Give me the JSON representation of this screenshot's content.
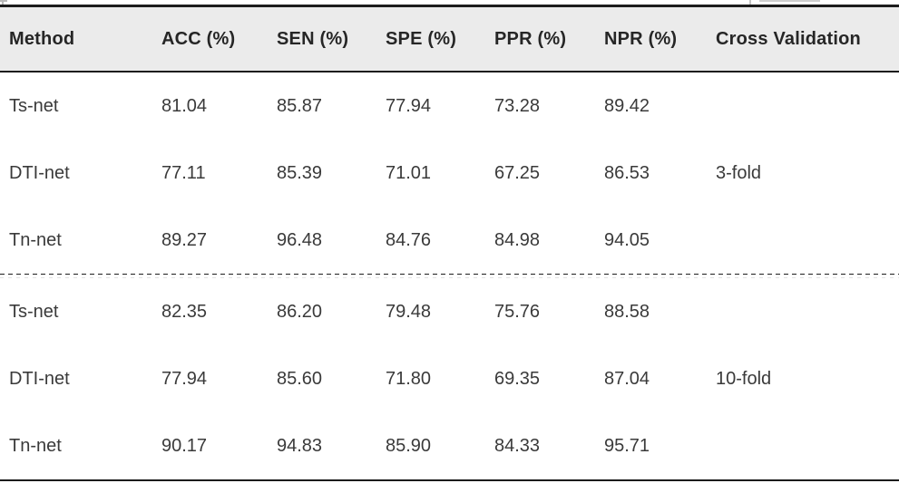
{
  "colors": {
    "header_background": "#ebebeb",
    "rule_color": "#1c1c1c",
    "header_text": "#262626",
    "body_text": "#3a3a3a"
  },
  "table": {
    "columns": [
      "Method",
      "ACC (%)",
      "SEN (%)",
      "SPE (%)",
      "PPR (%)",
      "NPR (%)",
      "Cross Validation"
    ],
    "sections": [
      {
        "cross_validation": "3-fold",
        "rows": [
          {
            "method": "Ts-net",
            "values": [
              "81.04",
              "85.87",
              "77.94",
              "73.28",
              "89.42"
            ]
          },
          {
            "method": "DTI-net",
            "values": [
              "77.11",
              "85.39",
              "71.01",
              "67.25",
              "86.53"
            ]
          },
          {
            "method": "Tn-net",
            "values": [
              "89.27",
              "96.48",
              "84.76",
              "84.98",
              "94.05"
            ]
          }
        ]
      },
      {
        "cross_validation": "10-fold",
        "rows": [
          {
            "method": "Ts-net",
            "values": [
              "82.35",
              "86.20",
              "79.48",
              "75.76",
              "88.58"
            ]
          },
          {
            "method": "DTI-net",
            "values": [
              "77.94",
              "85.60",
              "71.80",
              "69.35",
              "87.04"
            ]
          },
          {
            "method": "Tn-net",
            "values": [
              "90.17",
              "94.83",
              "85.90",
              "84.33",
              "95.71"
            ]
          }
        ]
      }
    ]
  },
  "chart_data": {
    "type": "table",
    "title": "",
    "columns": [
      "Method",
      "ACC (%)",
      "SEN (%)",
      "SPE (%)",
      "PPR (%)",
      "NPR (%)",
      "Cross Validation"
    ],
    "rows": [
      [
        "Ts-net",
        81.04,
        85.87,
        77.94,
        73.28,
        89.42,
        "3-fold"
      ],
      [
        "DTI-net",
        77.11,
        85.39,
        71.01,
        67.25,
        86.53,
        "3-fold"
      ],
      [
        "Tn-net",
        89.27,
        96.48,
        84.76,
        84.98,
        94.05,
        "3-fold"
      ],
      [
        "Ts-net",
        82.35,
        86.2,
        79.48,
        75.76,
        88.58,
        "10-fold"
      ],
      [
        "DTI-net",
        77.94,
        85.6,
        71.8,
        69.35,
        87.04,
        "10-fold"
      ],
      [
        "Tn-net",
        90.17,
        94.83,
        85.9,
        84.33,
        95.71,
        "10-fold"
      ]
    ]
  }
}
